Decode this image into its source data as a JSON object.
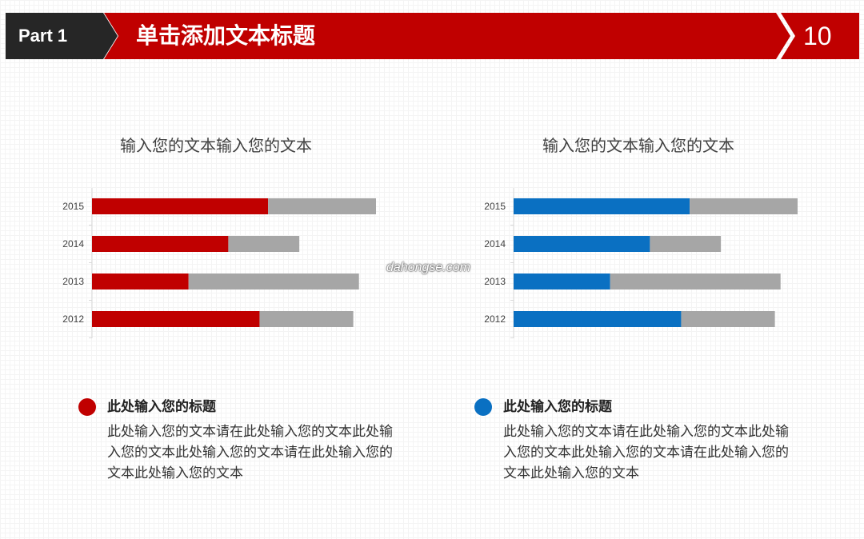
{
  "header": {
    "part_label": "Part 1",
    "title": "单击添加文本标题",
    "page_number": "10"
  },
  "watermark": "dahongse.com",
  "colors": {
    "accent_red": "#c00000",
    "accent_blue": "#0a70c2",
    "track_gray": "#a6a6a6",
    "dark_tab": "#262626"
  },
  "chart_data": [
    {
      "type": "bar",
      "orientation": "horizontal",
      "stacked": true,
      "title": "输入您的文本输入您的文本",
      "categories": [
        "2015",
        "2014",
        "2013",
        "2012"
      ],
      "series": [
        {
          "color": "#c00000",
          "values": [
            62,
            48,
            34,
            59
          ]
        },
        {
          "color": "#a6a6a6",
          "values": [
            38,
            25,
            60,
            33
          ]
        }
      ],
      "xlim": [
        0,
        100
      ]
    },
    {
      "type": "bar",
      "orientation": "horizontal",
      "stacked": true,
      "title": "输入您的文本输入您的文本",
      "categories": [
        "2015",
        "2014",
        "2013",
        "2012"
      ],
      "series": [
        {
          "color": "#0a70c2",
          "values": [
            62,
            48,
            34,
            59
          ]
        },
        {
          "color": "#a6a6a6",
          "values": [
            38,
            25,
            60,
            33
          ]
        }
      ],
      "xlim": [
        0,
        100
      ]
    }
  ],
  "cards": [
    {
      "color": "#c00000",
      "title": "此处输入您的标题",
      "body": "此处输入您的文本请在此处输入您的文本此处输入您的文本此处输入您的文本请在此处输入您的文本此处输入您的文本"
    },
    {
      "color": "#0a70c2",
      "title": "此处输入您的标题",
      "body": "此处输入您的文本请在此处输入您的文本此处输入您的文本此处输入您的文本请在此处输入您的文本此处输入您的文本"
    }
  ]
}
